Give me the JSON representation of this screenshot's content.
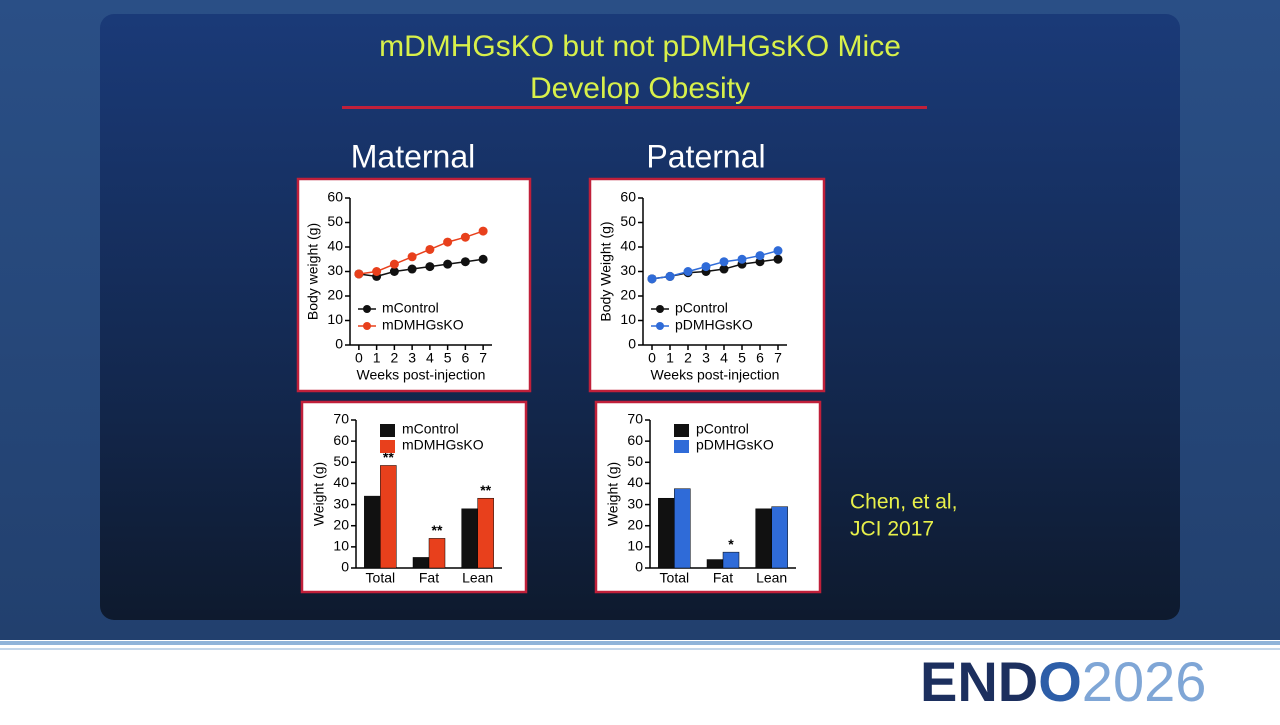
{
  "slide": {
    "title_lines": [
      "mDMHGsKO but not pDMHGsKO Mice",
      "Develop Obesity"
    ],
    "headings": [
      "Maternal",
      "Paternal"
    ],
    "citation_lines": [
      "Chen, et al,",
      "JCI 2017"
    ],
    "logo": [
      "END",
      "O",
      "2026"
    ]
  },
  "chart_data": [
    {
      "type": "line",
      "xlabel": "Weeks post-injection",
      "ylabel": "Body weight (g)",
      "x": [
        0,
        1,
        2,
        3,
        4,
        5,
        6,
        7
      ],
      "xlim": [
        -0.5,
        7.5
      ],
      "xticks": [
        0,
        1,
        2,
        3,
        4,
        5,
        6,
        7
      ],
      "ylim": [
        0,
        60
      ],
      "yticks": [
        0,
        10,
        20,
        30,
        40,
        50,
        60
      ],
      "legend": "lower left",
      "series": [
        {
          "name": "mControl",
          "color": "#111111",
          "values": [
            29,
            28,
            30,
            31,
            32,
            33,
            34,
            35
          ]
        },
        {
          "name": "mDMHGsKO",
          "color": "#e8401c",
          "values": [
            29,
            30,
            33,
            36,
            39,
            42,
            44,
            46.5
          ]
        }
      ]
    },
    {
      "type": "line",
      "xlabel": "Weeks post-injection",
      "ylabel": "Body Weight (g)",
      "x": [
        0,
        1,
        2,
        3,
        4,
        5,
        6,
        7
      ],
      "xlim": [
        -0.5,
        7.5
      ],
      "xticks": [
        0,
        1,
        2,
        3,
        4,
        5,
        6,
        7
      ],
      "ylim": [
        0,
        60
      ],
      "yticks": [
        0,
        10,
        20,
        30,
        40,
        50,
        60
      ],
      "legend": "lower left",
      "series": [
        {
          "name": "pControl",
          "color": "#111111",
          "values": [
            27,
            28,
            29.5,
            30,
            31,
            33,
            34,
            35
          ]
        },
        {
          "name": "pDMHGsKO",
          "color": "#2f6bd8",
          "values": [
            27,
            28,
            30,
            32,
            34,
            35,
            36.5,
            38.5
          ]
        }
      ]
    },
    {
      "type": "bar",
      "ylabel": "Weight (g)",
      "categories": [
        "Total",
        "Fat",
        "Lean"
      ],
      "ylim": [
        0,
        70
      ],
      "yticks": [
        0,
        10,
        20,
        30,
        40,
        50,
        60,
        70
      ],
      "legend": "upper left",
      "series": [
        {
          "name": "mControl",
          "color": "#111111",
          "values": [
            34,
            5,
            28
          ]
        },
        {
          "name": "mDMHGsKO",
          "color": "#e8401c",
          "values": [
            48.5,
            14,
            33
          ],
          "significance": [
            "**",
            "**",
            "**"
          ]
        }
      ]
    },
    {
      "type": "bar",
      "ylabel": "Weight (g)",
      "categories": [
        "Total",
        "Fat",
        "Lean"
      ],
      "ylim": [
        0,
        70
      ],
      "yticks": [
        0,
        10,
        20,
        30,
        40,
        50,
        60,
        70
      ],
      "legend": "upper left",
      "series": [
        {
          "name": "pControl",
          "color": "#111111",
          "values": [
            33,
            4,
            28
          ]
        },
        {
          "name": "pDMHGsKO",
          "color": "#2f6bd8",
          "values": [
            37.5,
            7.5,
            29
          ],
          "significance": [
            null,
            "*",
            null
          ]
        }
      ]
    }
  ]
}
